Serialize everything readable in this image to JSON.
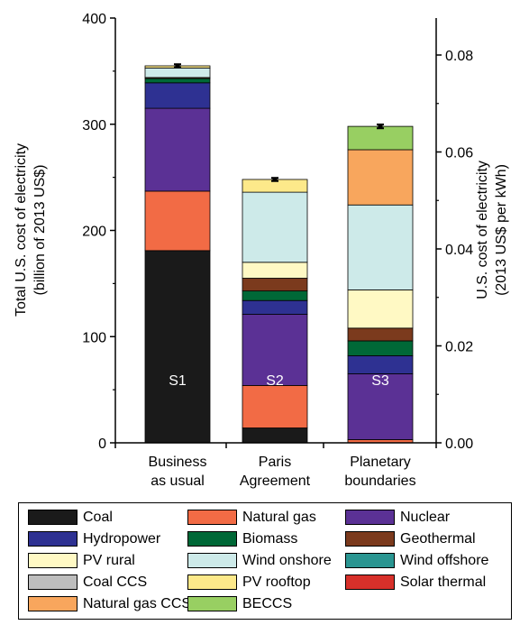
{
  "chart_data": {
    "type": "bar",
    "stacked": true,
    "categories": [
      "Business as usual",
      "Paris Agreement",
      "Planetary boundaries"
    ],
    "category_lines": [
      [
        "Business",
        "as usual"
      ],
      [
        "Paris",
        "Agreement"
      ],
      [
        "Planetary",
        "boundaries"
      ]
    ],
    "bar_labels": [
      "S1",
      "S2",
      "S3"
    ],
    "ylabel_left": [
      "Total U.S. cost of electricity",
      "(billion of 2013 US$)"
    ],
    "ylabel_right": [
      "U.S. cost of electricity",
      "(2013 US$ per kWh)"
    ],
    "ylim_left": [
      0,
      400
    ],
    "ylim_right": [
      0,
      0.085
    ],
    "yticks_left": [
      "0",
      "100",
      "200",
      "300",
      "400"
    ],
    "yticks_right": [
      "0.00",
      "0.02",
      "0.04",
      "0.06",
      "0.08"
    ],
    "error_bars": [
      {
        "value": 355,
        "err": 1.5
      },
      {
        "value": 248,
        "err": 1.5
      },
      {
        "value": 298,
        "err": 1.8
      }
    ],
    "series": [
      {
        "name": "Coal",
        "color": "#1a1a1a",
        "values": [
          181,
          14,
          0
        ]
      },
      {
        "name": "Natural gas",
        "color": "#f26b45",
        "values": [
          56,
          40,
          3
        ]
      },
      {
        "name": "Nuclear",
        "color": "#5b3195",
        "values": [
          78,
          67,
          62
        ]
      },
      {
        "name": "Hydropower",
        "color": "#2e3192",
        "values": [
          24,
          13,
          17
        ]
      },
      {
        "name": "Biomass",
        "color": "#006837",
        "values": [
          4,
          9,
          14
        ]
      },
      {
        "name": "Geothermal",
        "color": "#7b3a1d",
        "values": [
          1,
          12,
          12
        ]
      },
      {
        "name": "PV rural",
        "color": "#fff9c4",
        "values": [
          0,
          15,
          36
        ]
      },
      {
        "name": "Wind onshore",
        "color": "#cdeae9",
        "values": [
          9,
          66,
          80
        ]
      },
      {
        "name": "Wind offshore",
        "color": "#2a9591",
        "values": [
          0,
          0,
          0
        ]
      },
      {
        "name": "Coal CCS",
        "color": "#bdbdbd",
        "values": [
          0,
          0,
          0
        ]
      },
      {
        "name": "PV rooftop",
        "color": "#fde98a",
        "values": [
          2,
          12,
          0
        ]
      },
      {
        "name": "Solar thermal",
        "color": "#d7302a",
        "values": [
          0,
          0,
          0
        ]
      },
      {
        "name": "Natural gas CCS",
        "color": "#f8a65d",
        "values": [
          0,
          0,
          52
        ]
      },
      {
        "name": "BECCS",
        "color": "#98cf62",
        "values": [
          0,
          0,
          22
        ]
      }
    ]
  }
}
